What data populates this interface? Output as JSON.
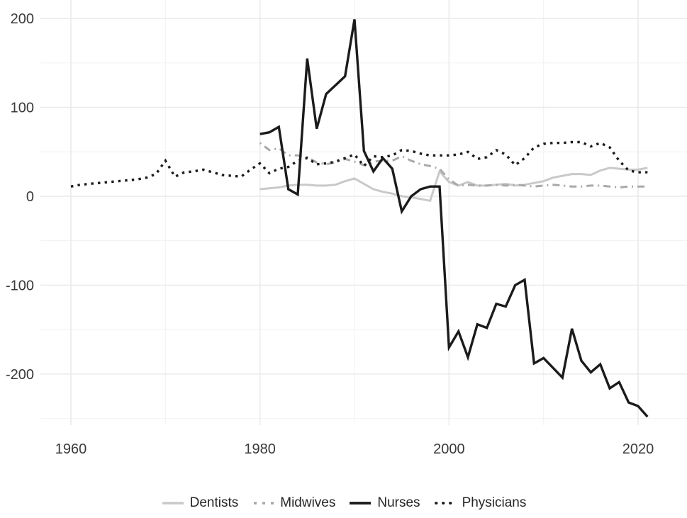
{
  "figure": {
    "background": "#ffffff",
    "axis_text_color": "#3a3a3a",
    "legend_text_color": "#262626"
  },
  "chart_data": {
    "type": "line",
    "title": "",
    "xlabel": "",
    "ylabel": "",
    "grid": {
      "shown": true,
      "major_color": "#e9e9e9",
      "minor_color": "#f3f3f3"
    },
    "x_axis": {
      "ticks": [
        1960,
        1980,
        2000,
        2020
      ],
      "tick_labels": [
        "1960",
        "1980",
        "2000",
        "2020"
      ],
      "minor_gridlines": [
        1970,
        1990,
        2010
      ],
      "range": [
        1957,
        2025
      ]
    },
    "y_axis": {
      "ticks": [
        200,
        100,
        0,
        -100,
        -200
      ],
      "tick_labels": [
        "200",
        "100",
        "0",
        "-100",
        "-200"
      ],
      "minor_gridlines": [
        150,
        50,
        -50,
        -150,
        -250
      ],
      "range": [
        -257,
        220
      ]
    },
    "legend": {
      "position": "bottom-center",
      "order": [
        "Dentists",
        "Midwives",
        "Nurses",
        "Physicians"
      ]
    },
    "draw_order": [
      "Dentists",
      "Midwives",
      "Physicians",
      "Nurses"
    ],
    "series": [
      {
        "name": "Dentists",
        "color": "#c9c9c9",
        "style": "solid",
        "width": 3,
        "start_year": 1980,
        "cadence": "annual",
        "values": [
          8,
          9,
          10,
          12,
          13,
          13,
          12,
          12,
          13,
          17,
          20,
          14,
          8,
          5,
          3,
          0,
          -1,
          -3,
          -5,
          28,
          16,
          12,
          16,
          12,
          12,
          13,
          14,
          12,
          13,
          15,
          17,
          21,
          23,
          25,
          25,
          24,
          29,
          32,
          31,
          30,
          30,
          32
        ]
      },
      {
        "name": "Midwives",
        "color": "#a9a9a9",
        "style": "dash-dot",
        "width": 3,
        "start_year": 1980,
        "cadence": "annual",
        "values": [
          60,
          52,
          54,
          46,
          46,
          44,
          38,
          36,
          38,
          42,
          39,
          35,
          39,
          40,
          40,
          45,
          40,
          36,
          34,
          31,
          19,
          12,
          13,
          12,
          12,
          13,
          12,
          13,
          12,
          11,
          12,
          13,
          12,
          11,
          11,
          12,
          12,
          11,
          10,
          11,
          11,
          11
        ]
      },
      {
        "name": "Nurses",
        "color": "#1b1b1b",
        "style": "solid",
        "width": 3.4,
        "start_year": 1980,
        "cadence": "annual",
        "values": [
          70,
          72,
          78,
          8,
          2,
          155,
          76,
          115,
          125,
          135,
          199,
          51,
          28,
          43,
          31,
          -17,
          0,
          8,
          11,
          11,
          -170,
          -152,
          -181,
          -144,
          -148,
          -121,
          -124,
          -100,
          -94,
          -188,
          -182,
          -193,
          -204,
          -149,
          -185,
          -198,
          -189,
          -216,
          -209,
          -232,
          -236,
          -248
        ]
      },
      {
        "name": "Physicians",
        "color": "#1b1b1b",
        "style": "dotted",
        "width": 3.4,
        "start_year": 1960,
        "cadence": "annual",
        "values": [
          11,
          13,
          14,
          15,
          16,
          17,
          18,
          19,
          21,
          25,
          40,
          22,
          27,
          28,
          30,
          27,
          24,
          23,
          22,
          30,
          37,
          26,
          31,
          33,
          40,
          43,
          36,
          37,
          39,
          43,
          47,
          34,
          45,
          44,
          46,
          52,
          51,
          48,
          46,
          46,
          46,
          47,
          50,
          42,
          44,
          52,
          47,
          35,
          43,
          55,
          59,
          60,
          60,
          61,
          61,
          56,
          60,
          55,
          40,
          29,
          27,
          27
        ]
      }
    ]
  }
}
